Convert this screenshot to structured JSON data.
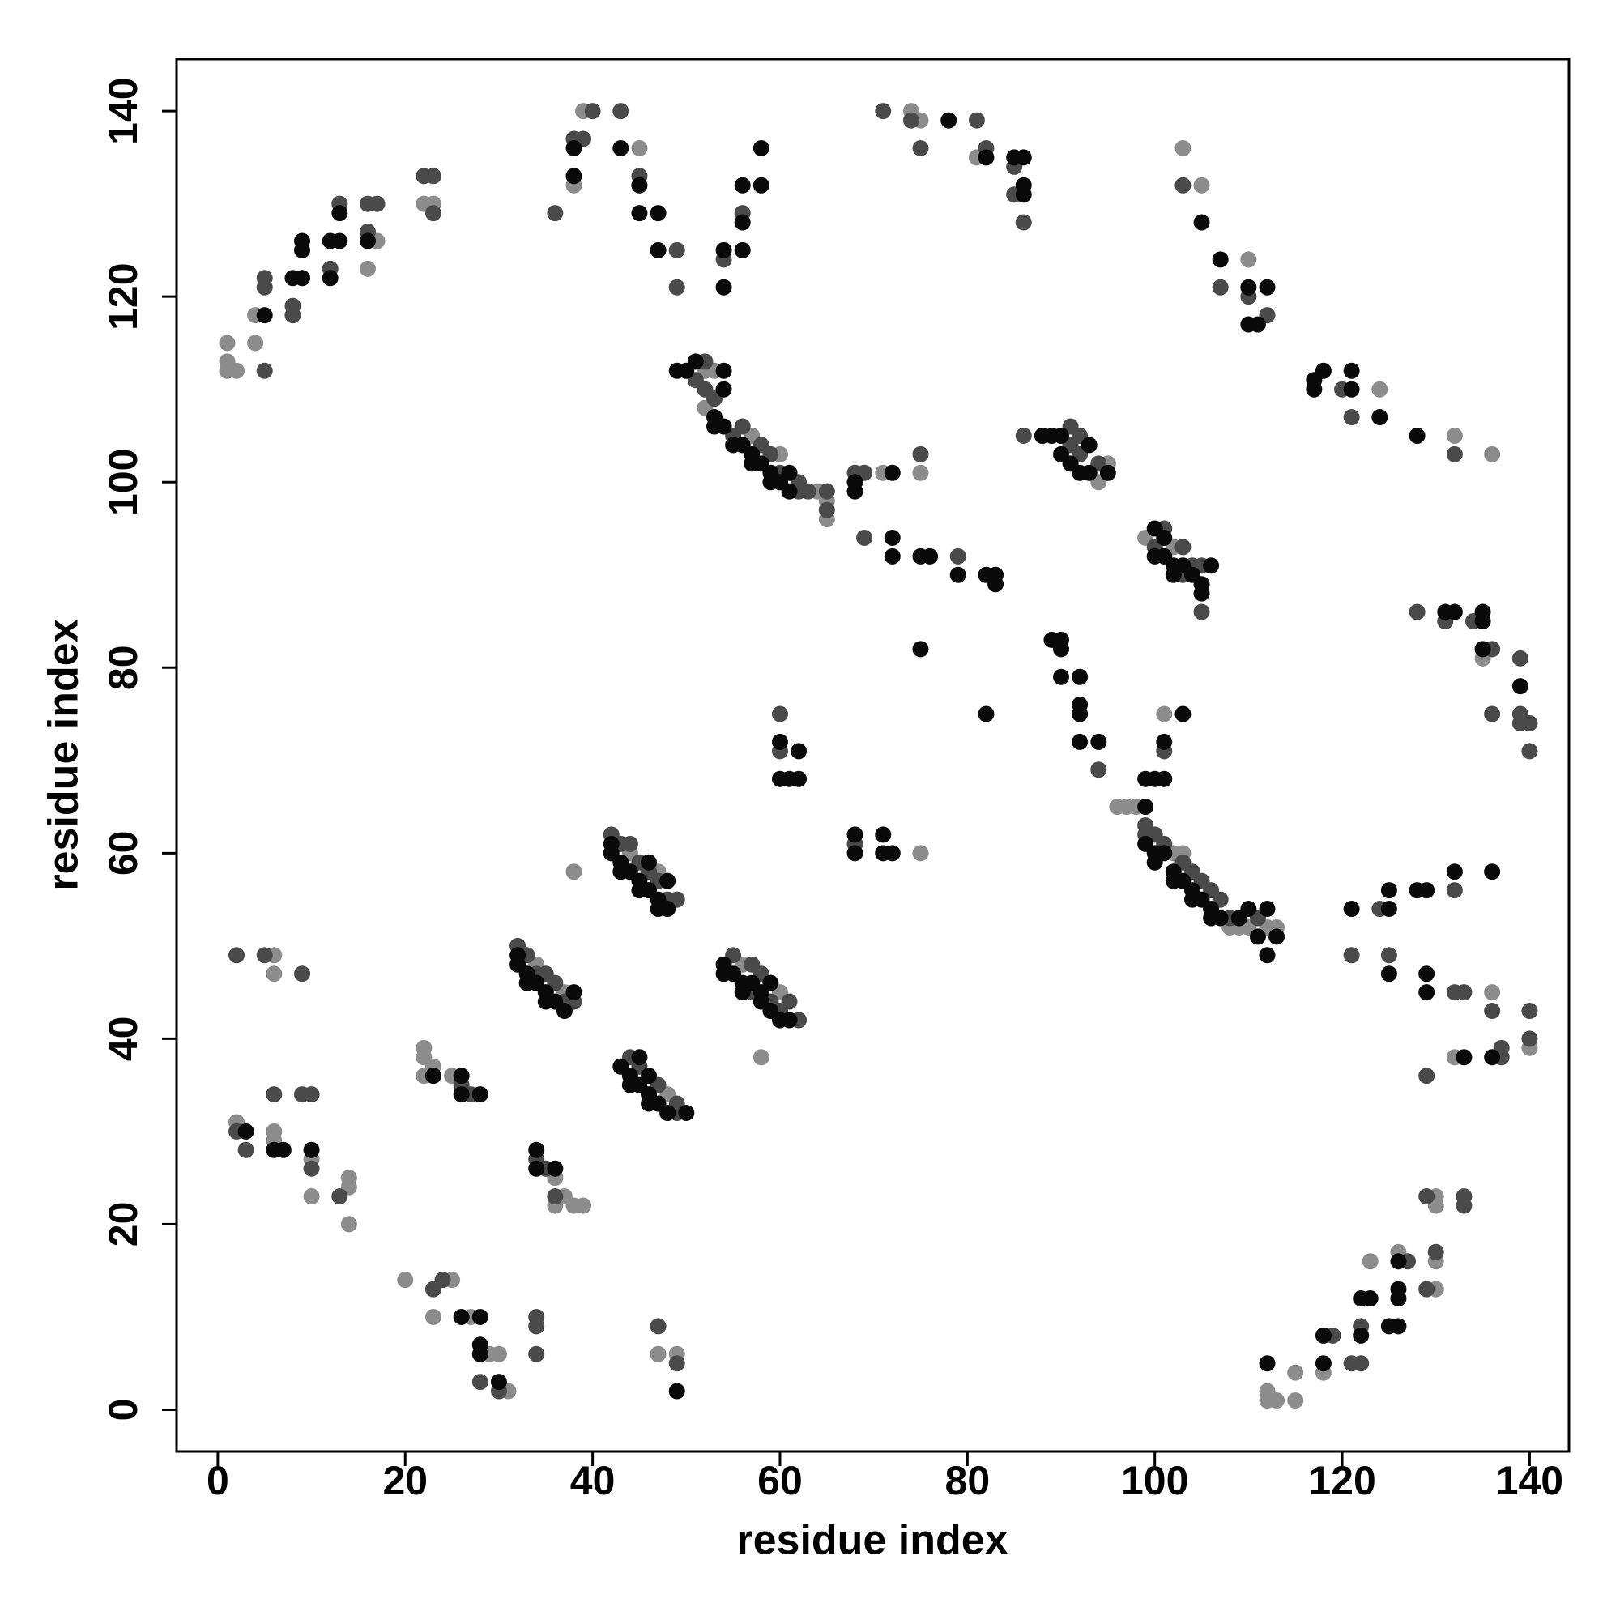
{
  "chart_data": {
    "type": "scatter",
    "xlabel": "residue index",
    "ylabel": "residue index",
    "xlim": [
      -4.4,
      144.2
    ],
    "ylim": [
      -4.5,
      145.6
    ],
    "xticks": [
      0,
      20,
      40,
      60,
      80,
      100,
      120,
      140
    ],
    "yticks": [
      0,
      20,
      40,
      60,
      80,
      100,
      120,
      140
    ],
    "grid": false,
    "series": [
      {
        "color": "#8c8c8c",
        "x": [
          1,
          1,
          1,
          2,
          4,
          4,
          16,
          17,
          22,
          23,
          38,
          39,
          45,
          74,
          75,
          81,
          103,
          105,
          110,
          124,
          132,
          136,
          52,
          52,
          53,
          57,
          60,
          64,
          65,
          65,
          71,
          75,
          94,
          95,
          99,
          102,
          101,
          96,
          97,
          98,
          102,
          103,
          108,
          109,
          110,
          112,
          113,
          135,
          136,
          140,
          132,
          112,
          112,
          113,
          115,
          115,
          118,
          123,
          126,
          130,
          130,
          130,
          130,
          6,
          6,
          2,
          6,
          6,
          10,
          10,
          14,
          14,
          14,
          22,
          22,
          22,
          23,
          25,
          20,
          25,
          23,
          27,
          29,
          30,
          31,
          36,
          36,
          37,
          38,
          39,
          47,
          49,
          34,
          37,
          38,
          44,
          47,
          48,
          56,
          60,
          58,
          75
        ],
        "values": [
          115,
          113,
          112,
          112,
          115,
          118,
          123,
          126,
          130,
          130,
          132,
          140,
          136,
          140,
          139,
          135,
          136,
          132,
          124,
          110,
          105,
          103,
          112,
          108,
          112,
          105,
          103,
          99,
          98,
          96,
          101,
          101,
          100,
          102,
          94,
          93,
          75,
          65,
          65,
          65,
          60,
          60,
          52,
          52,
          52,
          52,
          52,
          81,
          45,
          39,
          38,
          2,
          1,
          1,
          4,
          1,
          4,
          16,
          17,
          23,
          22,
          16,
          13,
          49,
          47,
          31,
          30,
          29,
          27,
          23,
          25,
          24,
          20,
          39,
          38,
          36,
          37,
          36,
          14,
          14,
          10,
          10,
          6,
          6,
          2,
          25,
          22,
          23,
          22,
          22,
          6,
          6,
          48,
          45,
          58,
          60,
          58,
          34,
          48,
          45,
          38,
          60
        ]
      },
      {
        "color": "#4a4a4a",
        "x": [
          5,
          5,
          5,
          8,
          8,
          12,
          13,
          16,
          16,
          17,
          22,
          23,
          23,
          36,
          38,
          39,
          40,
          43,
          45,
          49,
          49,
          54,
          56,
          71,
          74,
          75,
          81,
          82,
          85,
          85,
          86,
          103,
          107,
          110,
          112,
          120,
          121,
          132,
          52,
          51,
          52,
          53,
          55,
          56,
          58,
          59,
          60,
          62,
          62,
          63,
          65,
          65,
          68,
          69,
          69,
          79,
          75,
          86,
          91,
          91,
          92,
          92,
          94,
          100,
          101,
          103,
          103,
          104,
          105,
          105,
          94,
          101,
          99,
          99,
          100,
          101,
          103,
          104,
          105,
          106,
          107,
          108,
          111,
          128,
          131,
          134,
          136,
          139,
          136,
          139,
          139,
          140,
          140,
          124,
          132,
          121,
          125,
          132,
          133,
          136,
          140,
          140,
          129,
          137,
          137,
          119,
          121,
          122,
          122,
          127,
          129,
          129,
          130,
          133,
          133,
          2,
          5,
          9,
          6,
          9,
          10,
          2,
          3,
          10,
          13,
          26,
          27,
          23,
          24,
          28,
          30,
          34,
          35,
          36,
          34,
          34,
          34,
          47,
          49,
          32,
          33,
          34,
          35,
          36,
          37,
          38,
          42,
          43,
          44,
          45,
          46,
          47,
          48,
          49,
          44,
          45,
          47,
          49,
          49,
          55,
          57,
          57,
          58,
          59,
          60,
          61,
          62,
          60,
          60,
          68
        ],
        "values": [
          122,
          121,
          112,
          118,
          119,
          123,
          130,
          127,
          130,
          130,
          133,
          133,
          129,
          129,
          137,
          137,
          140,
          140,
          133,
          125,
          121,
          124,
          129,
          140,
          139,
          136,
          139,
          136,
          131,
          134,
          128,
          132,
          121,
          120,
          118,
          110,
          107,
          103,
          113,
          111,
          110,
          109,
          105,
          106,
          104,
          103,
          101,
          100,
          99,
          99,
          99,
          97,
          101,
          101,
          94,
          92,
          103,
          105,
          106,
          104,
          105,
          103,
          102,
          93,
          95,
          93,
          90,
          91,
          91,
          86,
          69,
          71,
          63,
          62,
          62,
          61,
          59,
          58,
          57,
          56,
          55,
          53,
          53,
          86,
          85,
          85,
          82,
          81,
          75,
          75,
          74,
          74,
          71,
          54,
          56,
          49,
          49,
          45,
          45,
          43,
          43,
          40,
          36,
          38,
          39,
          8,
          5,
          5,
          9,
          16,
          13,
          23,
          17,
          23,
          22,
          49,
          49,
          47,
          34,
          34,
          34,
          30,
          28,
          26,
          23,
          35,
          34,
          13,
          14,
          3,
          2,
          27,
          26,
          23,
          10,
          9,
          6,
          9,
          5,
          50,
          49,
          47,
          47,
          46,
          44,
          44,
          62,
          61,
          61,
          59,
          58,
          57,
          55,
          55,
          38,
          37,
          35,
          33,
          32,
          49,
          48,
          45,
          47,
          44,
          43,
          44,
          42,
          75,
          71,
          61
        ]
      },
      {
        "color": "#0a0a0a",
        "x": [
          5,
          8,
          9,
          9,
          9,
          12,
          12,
          13,
          13,
          16,
          38,
          38,
          43,
          45,
          45,
          47,
          47,
          54,
          54,
          56,
          56,
          56,
          58,
          58,
          78,
          82,
          85,
          86,
          86,
          86,
          105,
          107,
          110,
          110,
          111,
          112,
          117,
          117,
          118,
          121,
          121,
          124,
          128,
          49,
          50,
          51,
          54,
          54,
          53,
          53,
          54,
          55,
          56,
          57,
          57,
          58,
          59,
          59,
          60,
          61,
          61,
          68,
          68,
          72,
          72,
          72,
          75,
          76,
          79,
          82,
          83,
          83,
          75,
          82,
          88,
          89,
          90,
          90,
          91,
          92,
          93,
          93,
          95,
          100,
          100,
          101,
          101,
          102,
          102,
          103,
          104,
          105,
          105,
          106,
          89,
          90,
          90,
          90,
          92,
          92,
          92,
          92,
          94,
          103,
          99,
          100,
          101,
          101,
          99,
          99,
          100,
          100,
          101,
          102,
          102,
          103,
          104,
          104,
          105,
          106,
          106,
          107,
          109,
          110,
          111,
          112,
          112,
          113,
          131,
          132,
          135,
          135,
          135,
          139,
          121,
          125,
          125,
          128,
          129,
          132,
          136,
          125,
          129,
          129,
          133,
          136,
          112,
          118,
          118,
          122,
          122,
          123,
          125,
          126,
          126,
          126,
          126,
          3,
          6,
          7,
          10,
          23,
          26,
          26,
          28,
          26,
          28,
          28,
          28,
          30,
          34,
          34,
          36,
          49,
          32,
          32,
          33,
          33,
          34,
          35,
          35,
          36,
          37,
          38,
          42,
          42,
          43,
          43,
          44,
          45,
          45,
          46,
          46,
          47,
          47,
          48,
          48,
          43,
          44,
          44,
          45,
          45,
          46,
          46,
          46,
          47,
          48,
          50,
          54,
          54,
          55,
          56,
          56,
          57,
          58,
          58,
          59,
          59,
          60,
          61,
          60,
          60,
          61,
          62,
          62,
          68,
          68,
          71,
          71,
          72
        ],
        "values": [
          118,
          122,
          122,
          125,
          126,
          122,
          126,
          126,
          129,
          126,
          133,
          136,
          136,
          132,
          129,
          129,
          125,
          121,
          125,
          125,
          128,
          132,
          132,
          136,
          139,
          135,
          135,
          135,
          132,
          131,
          128,
          124,
          121,
          117,
          117,
          121,
          111,
          110,
          112,
          112,
          110,
          107,
          105,
          112,
          112,
          113,
          112,
          110,
          107,
          106,
          106,
          104,
          104,
          103,
          102,
          102,
          101,
          100,
          100,
          101,
          99,
          100,
          99,
          101,
          94,
          92,
          92,
          92,
          90,
          90,
          90,
          89,
          82,
          75,
          105,
          105,
          105,
          103,
          102,
          101,
          104,
          101,
          101,
          95,
          92,
          94,
          92,
          91,
          90,
          91,
          90,
          89,
          88,
          91,
          83,
          83,
          82,
          79,
          79,
          76,
          75,
          72,
          72,
          75,
          68,
          68,
          72,
          68,
          65,
          61,
          60,
          59,
          60,
          58,
          57,
          57,
          56,
          55,
          55,
          54,
          53,
          53,
          53,
          54,
          51,
          54,
          49,
          51,
          86,
          86,
          86,
          85,
          82,
          78,
          54,
          54,
          56,
          56,
          56,
          58,
          58,
          47,
          47,
          45,
          38,
          38,
          5,
          8,
          5,
          8,
          12,
          12,
          9,
          9,
          12,
          13,
          16,
          30,
          28,
          28,
          28,
          36,
          36,
          34,
          34,
          10,
          10,
          7,
          6,
          3,
          28,
          26,
          26,
          2,
          49,
          48,
          47,
          46,
          46,
          45,
          44,
          44,
          43,
          45,
          61,
          60,
          59,
          58,
          58,
          57,
          56,
          59,
          56,
          55,
          54,
          57,
          54,
          37,
          36,
          35,
          38,
          35,
          36,
          34,
          33,
          33,
          32,
          32,
          48,
          47,
          47,
          46,
          45,
          46,
          45,
          44,
          46,
          43,
          42,
          42,
          72,
          68,
          68,
          71,
          68,
          62,
          60,
          62,
          60,
          60
        ]
      }
    ]
  }
}
